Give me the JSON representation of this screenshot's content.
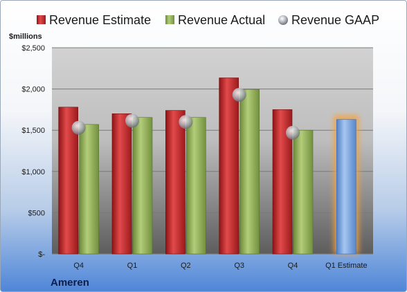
{
  "chart_data": {
    "type": "bar",
    "categories": [
      "Q4",
      "Q1",
      "Q2",
      "Q3",
      "Q4",
      "Q1 Estimate"
    ],
    "series": [
      {
        "name": "Revenue Estimate",
        "values": [
          1780,
          1700,
          1740,
          2135,
          1750,
          null
        ],
        "color": "#c0292b"
      },
      {
        "name": "Revenue Actual",
        "values": [
          1570,
          1655,
          1655,
          1995,
          1500,
          1630
        ],
        "color": "#8fac55"
      },
      {
        "name": "Revenue GAAP",
        "type": "scatter",
        "values": [
          1530,
          1615,
          1600,
          1930,
          1470,
          null
        ],
        "color": "#b9bcc2"
      }
    ],
    "highlight": {
      "category": "Q1 Estimate",
      "color": "#6f9fdc",
      "glow": "#f5a13d"
    },
    "ylabel": "$millions",
    "ylim": [
      0,
      2500
    ],
    "yticks": [
      0,
      500,
      1000,
      1500,
      2000,
      2500
    ],
    "ytick_labels": [
      "$-",
      "$500",
      "$1,000",
      "$1,500",
      "$2,000",
      "$2,500"
    ],
    "grid": true,
    "legend_position": "top",
    "company": "Ameren"
  }
}
